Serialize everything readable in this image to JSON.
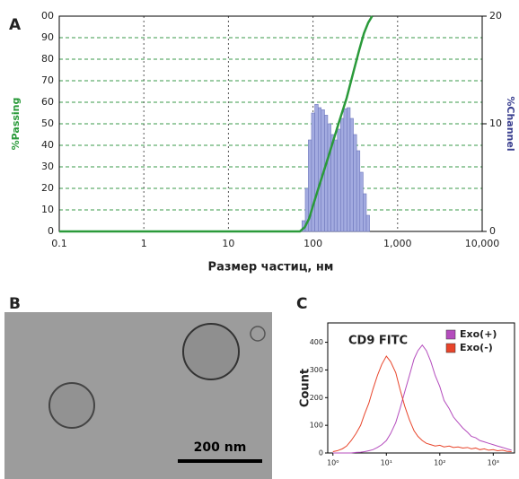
{
  "chart_data": [
    {
      "type": "histogram",
      "label": "A",
      "xlabel": "Размер частиц, нм",
      "ylabel": "%Passing",
      "y2label": "%Channel",
      "ylabel_color": "#2a9a3a",
      "y2label_color": "#3a3f8f",
      "xscale": "log",
      "grid": true,
      "xlim": [
        0.1,
        10000
      ],
      "xticks": [
        0.1,
        1,
        10,
        100,
        {
          "value": 1000,
          "label": "1,000"
        },
        {
          "value": 10000,
          "label": "10,000"
        }
      ],
      "ylim": [
        0,
        100
      ],
      "yticks": [
        0,
        10,
        20,
        30,
        40,
        50,
        60,
        70,
        80,
        90,
        {
          "value": 100,
          "label": "00"
        }
      ],
      "y2lim": [
        0,
        20
      ],
      "y2ticks": [
        0,
        10,
        20
      ],
      "histogram": {
        "axis": "y2",
        "color": "#a3abe0",
        "edge_color": "#6f78bd",
        "bins": [
          74,
          81,
          88,
          96,
          105,
          115,
          125,
          137,
          149,
          163,
          178,
          194,
          212,
          231,
          252,
          275,
          300,
          328,
          358,
          391,
          427,
          466
        ],
        "values": [
          1,
          4,
          8.5,
          11,
          11.8,
          11.5,
          11.3,
          10.8,
          10,
          9,
          8.5,
          9.5,
          10.5,
          11.4,
          11.5,
          10.5,
          9,
          7.5,
          5.5,
          3.5,
          1.5
        ]
      },
      "line": {
        "color": "#2a9a3a",
        "x": [
          0.1,
          50,
          70,
          80,
          90,
          100,
          120,
          150,
          200,
          250,
          300,
          350,
          400,
          450,
          500
        ],
        "values": [
          0,
          0,
          0,
          2,
          6,
          12,
          22,
          34,
          50,
          62,
          74,
          84,
          92,
          97,
          100
        ]
      }
    },
    {
      "type": "image",
      "label": "B",
      "annotation": "200 nm"
    },
    {
      "type": "line",
      "label": "C",
      "ylabel": "Count",
      "annotation": "CD9 FITC",
      "xscale": "log",
      "legend": "upper right",
      "xlim": [
        0.8,
        2500
      ],
      "xticks": [
        {
          "value": 1,
          "label": "10⁰"
        },
        {
          "value": 10,
          "label": "10¹"
        },
        {
          "value": 100,
          "label": "10²"
        },
        {
          "value": 1000,
          "label": "10³"
        }
      ],
      "ylim": [
        0,
        470
      ],
      "yticks": [
        0,
        100,
        200,
        300,
        400
      ],
      "x": [
        1,
        1.2,
        1.5,
        1.8,
        2.2,
        2.7,
        3.3,
        3.9,
        4.7,
        5.6,
        6.8,
        8.2,
        10,
        12,
        15,
        18,
        22,
        27,
        33,
        39,
        47,
        56,
        68,
        82,
        100,
        120,
        150,
        180,
        220,
        270,
        330,
        390,
        470,
        560,
        680,
        820,
        1000,
        1200,
        1500,
        1800,
        2200
      ],
      "series": [
        {
          "name": "Exo(+)",
          "color": "#b44cbd",
          "values": [
            0,
            0,
            0,
            0,
            0,
            2,
            3,
            5,
            8,
            12,
            20,
            30,
            45,
            70,
            110,
            160,
            220,
            280,
            340,
            370,
            390,
            370,
            330,
            280,
            240,
            190,
            160,
            130,
            110,
            90,
            75,
            60,
            55,
            45,
            40,
            35,
            30,
            25,
            20,
            15,
            10
          ]
        },
        {
          "name": "Exo(-)",
          "color": "#e8442a",
          "values": [
            5,
            8,
            15,
            25,
            45,
            70,
            100,
            140,
            180,
            230,
            280,
            320,
            350,
            330,
            290,
            230,
            170,
            120,
            80,
            60,
            45,
            35,
            30,
            25,
            28,
            22,
            25,
            20,
            22,
            18,
            20,
            15,
            18,
            12,
            15,
            10,
            12,
            8,
            10,
            6,
            5
          ]
        }
      ]
    }
  ]
}
